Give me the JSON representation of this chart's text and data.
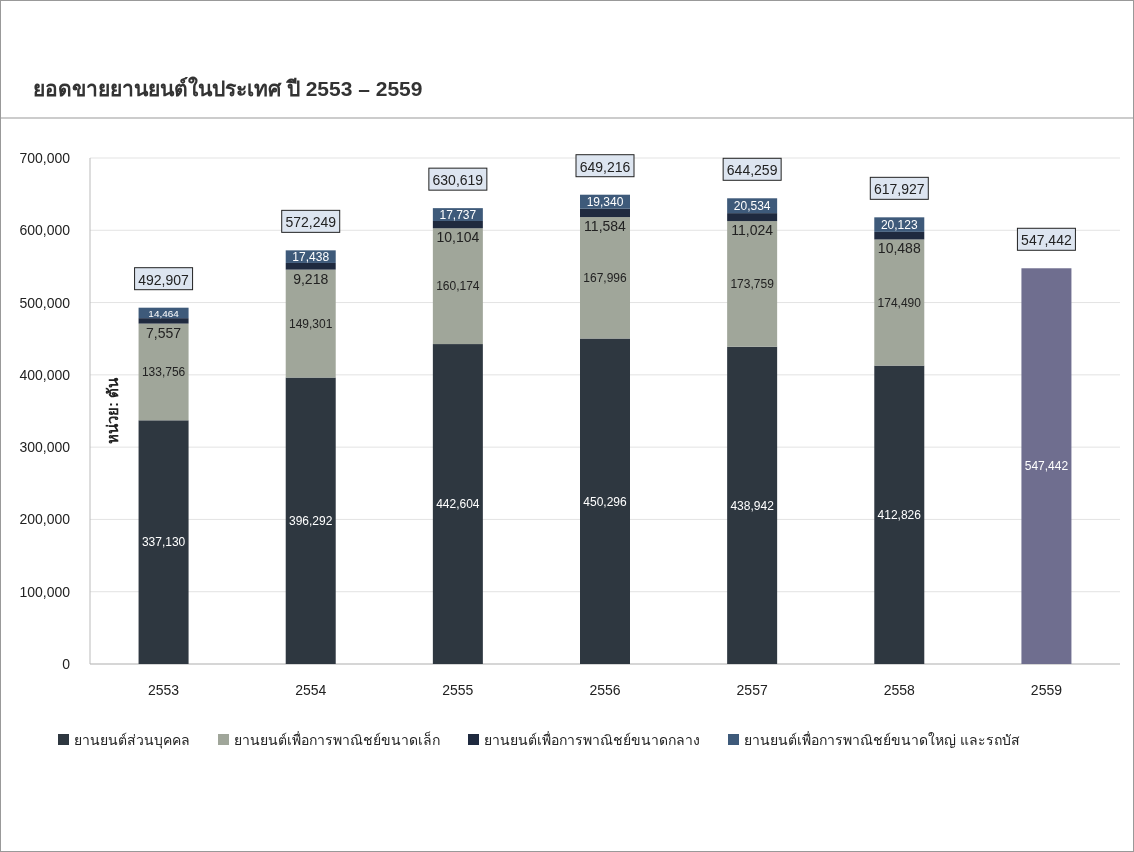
{
  "chart_data": {
    "type": "bar",
    "title": "ยอดขายยานยนต์ในประเทศ ปี 2553 – 2559",
    "ylabel": "หน่วย: ตัน",
    "categories": [
      "2553",
      "2554",
      "2555",
      "2556",
      "2557",
      "2558",
      "2559"
    ],
    "stacked": true,
    "series": [
      {
        "name": "ยานยนต์ส่วนบุคคล",
        "color": "#2e3740",
        "values": [
          337130,
          396292,
          442604,
          450296,
          438942,
          412826,
          null
        ],
        "value_labels": [
          "337,130",
          "396,292",
          "442,604",
          "450,296",
          "438,942",
          "412,826",
          null
        ]
      },
      {
        "name": "ยานยนต์เพื่อการพาณิชย์ขนาดเล็ก",
        "color": "#a0a69a",
        "values": [
          133756,
          149301,
          160174,
          167996,
          173759,
          174490,
          null
        ],
        "value_labels": [
          "133,756",
          "149,301",
          "160,174",
          "167,996",
          "173,759",
          "174,490",
          null
        ]
      },
      {
        "name": "ยานยนต์เพื่อการพาณิชย์ขนาดกลาง",
        "color": "#1f2a3f",
        "values": [
          7557,
          9218,
          10104,
          11584,
          11024,
          10488,
          null
        ],
        "value_labels": [
          "7,557",
          "9,218",
          "10,104",
          "11,584",
          "11,024",
          "10,488",
          null
        ]
      },
      {
        "name": "ยานยนต์เพื่อการพาณิชย์ขนาดใหญ่ และรถบัส",
        "color": "#3e5a7a",
        "values": [
          14464,
          17438,
          17737,
          19340,
          20534,
          20123,
          null
        ],
        "value_labels": [
          "14,464",
          "17,438",
          "17,737",
          "19,340",
          "20,534",
          "20,123",
          null
        ]
      },
      {
        "color": "#6f6e8f",
        "values": [
          null,
          null,
          null,
          null,
          null,
          null,
          547442
        ],
        "value_labels": [
          null,
          null,
          null,
          null,
          null,
          null,
          "547,442"
        ]
      }
    ],
    "ylim": [
      0,
      700000
    ],
    "yticks": [
      {
        "value": 0,
        "label": "0"
      },
      {
        "value": 100000,
        "label": "100,000"
      },
      {
        "value": 200000,
        "label": "200,000"
      },
      {
        "value": 300000,
        "label": "300,000"
      },
      {
        "value": 400000,
        "label": "400,000"
      },
      {
        "value": 500000,
        "label": "500,000"
      },
      {
        "value": 600000,
        "label": "600,000"
      },
      {
        "value": 700000,
        "label": "700,000"
      }
    ],
    "grid": "y",
    "legend": "bottom",
    "totals": [
      "492,907",
      "572,249",
      "630,619",
      "649,216",
      "644,259",
      "617,927",
      "547,442"
    ]
  }
}
